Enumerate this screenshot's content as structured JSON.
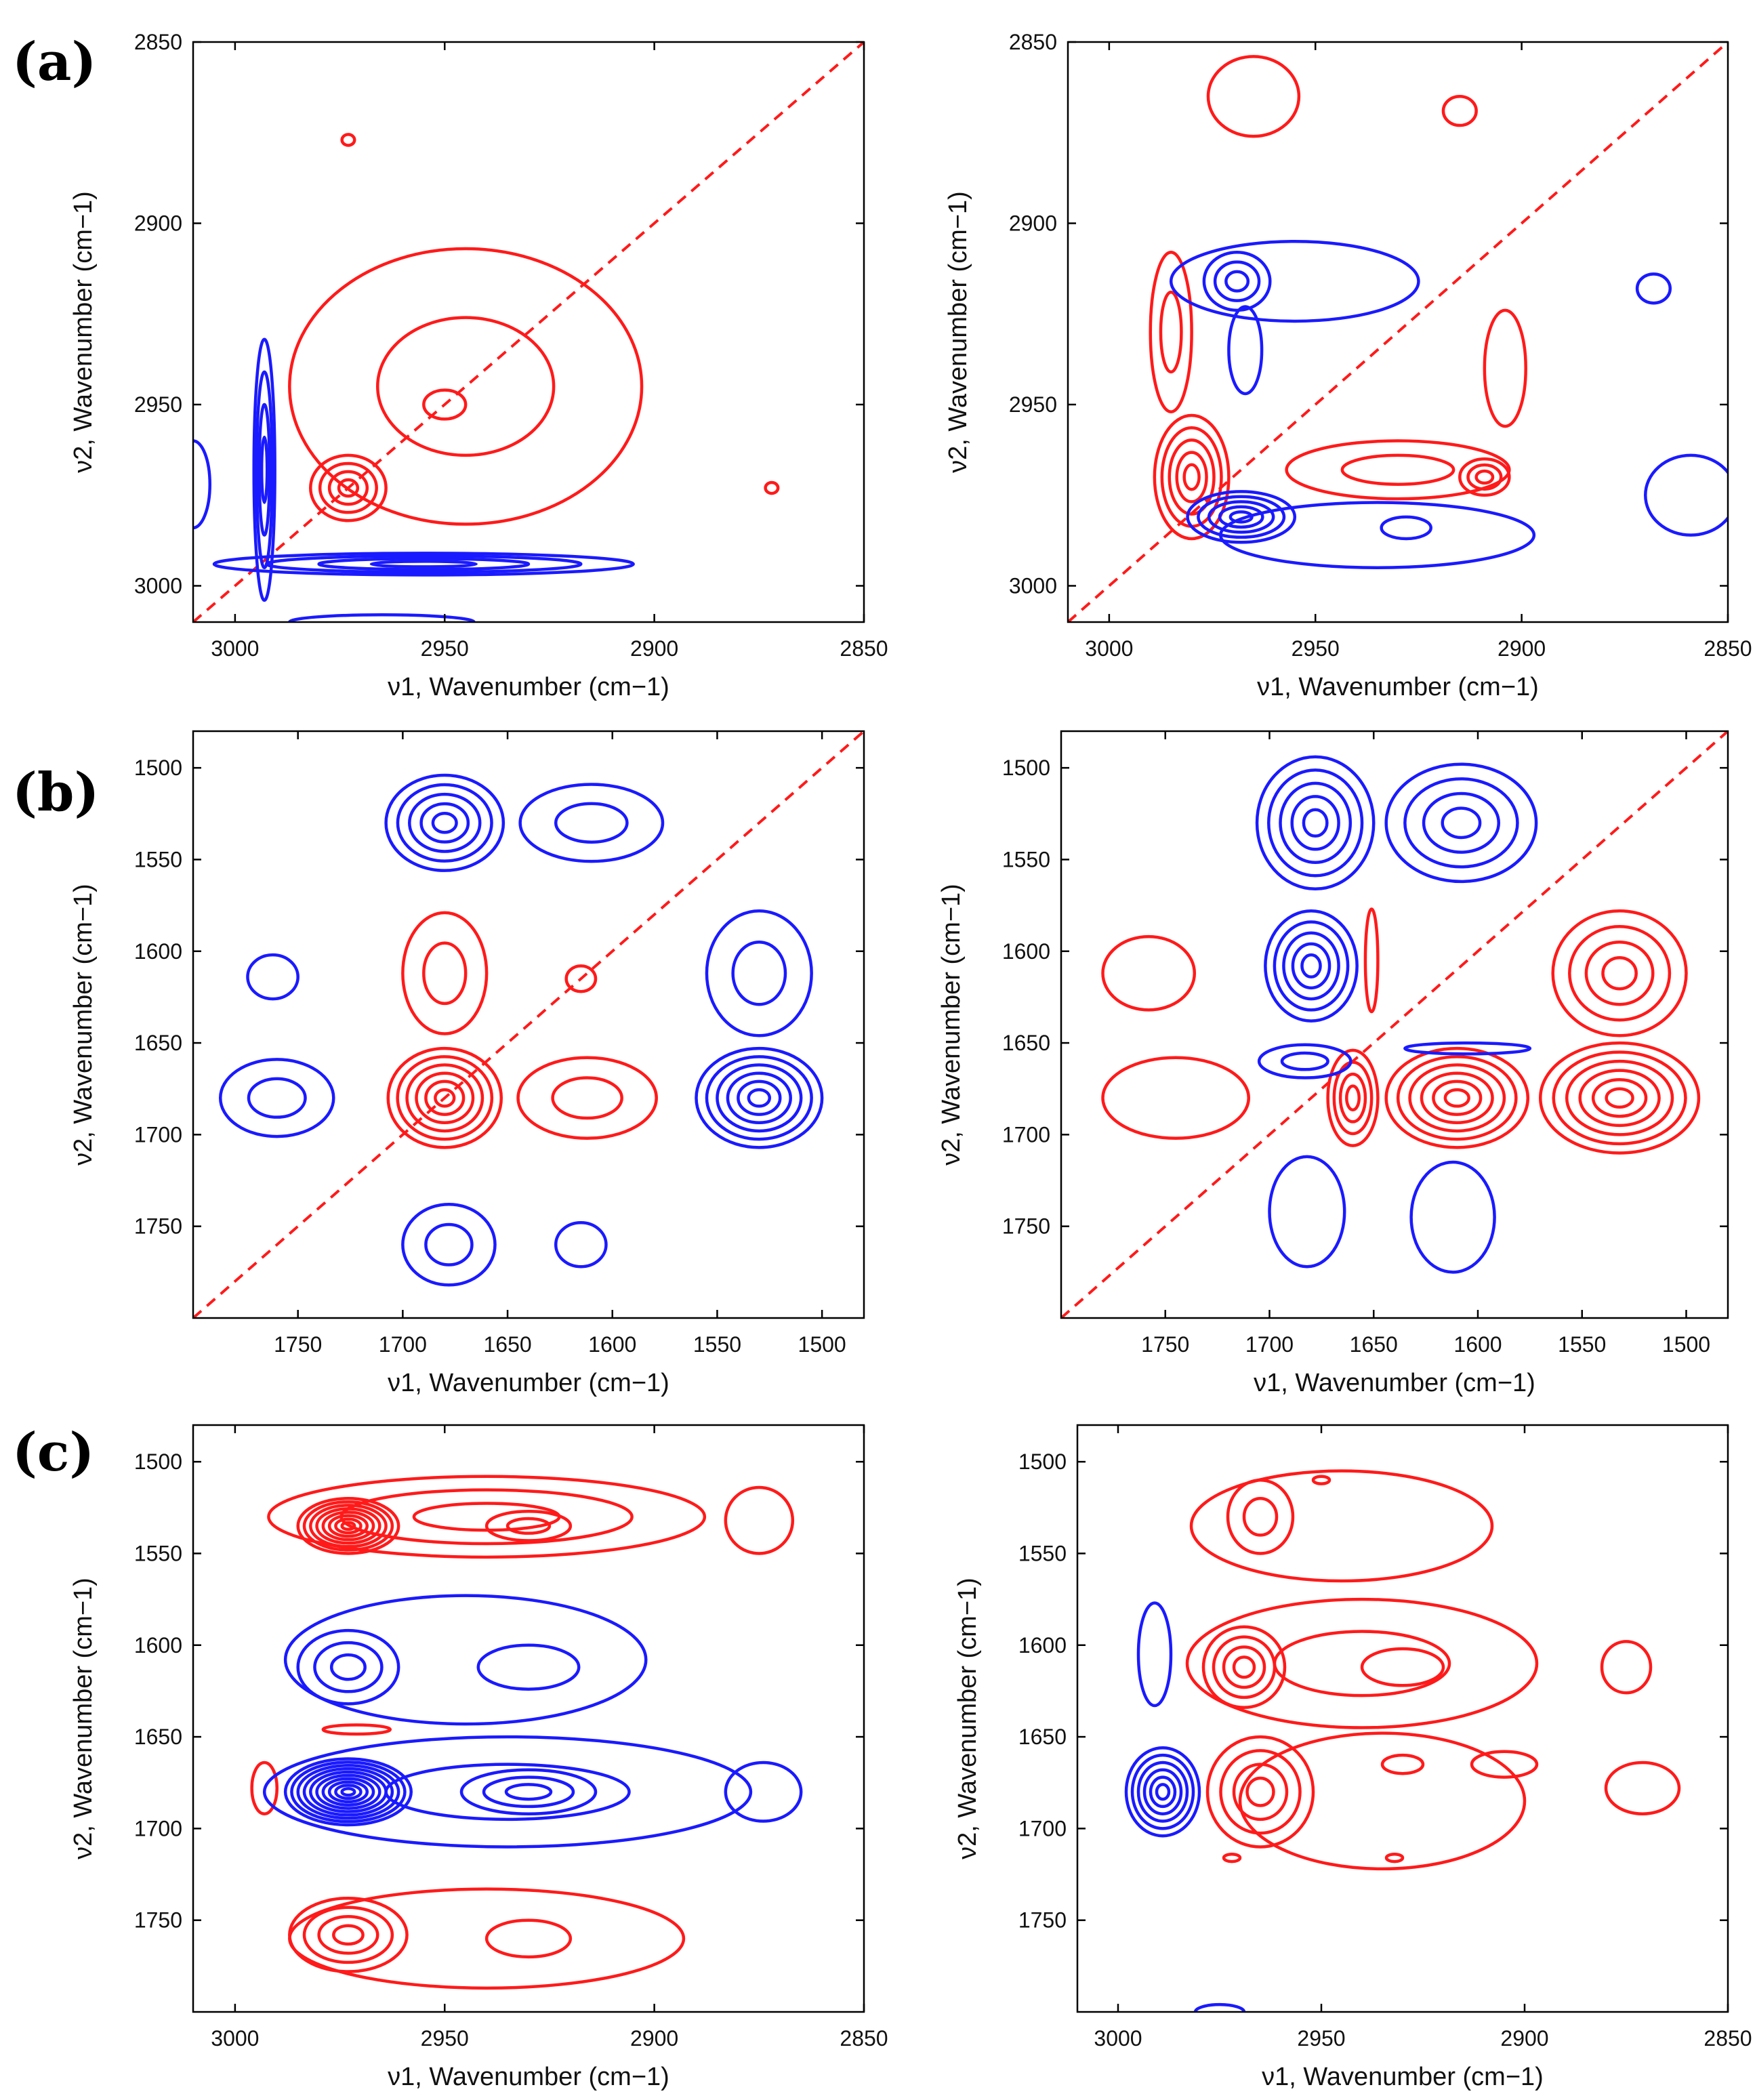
{
  "figure": {
    "panel_labels": [
      "(a)",
      "(b)",
      "(c)"
    ],
    "colors": {
      "positive": "#ff1a1a",
      "negative": "#1a1aff",
      "diagonal": "#ff1a1a",
      "frame": "#000000"
    }
  },
  "chart_data": [
    {
      "id": "a-left",
      "type": "contour",
      "panel": "(a)",
      "title": "",
      "xlabel": "ν1, Wavenumber (cm−1)",
      "ylabel": "ν2, Wavenumber (cm−1)",
      "xlim": [
        3010,
        2850
      ],
      "ylim": [
        2850,
        3010
      ],
      "xticks": [
        3000,
        2950,
        2900,
        2850
      ],
      "yticks": [
        2850,
        2900,
        2950,
        3000
      ],
      "diagonal": true,
      "peaks": [
        {
          "sign": "pos",
          "x": 2973,
          "y": 2973,
          "rx": 9,
          "ry": 9,
          "levels": 4
        },
        {
          "sign": "pos",
          "x": 2950,
          "y": 2950,
          "rx": 5,
          "ry": 4,
          "levels": 1
        },
        {
          "sign": "pos",
          "x": 2945,
          "y": 2945,
          "rx": 42,
          "ry": 38,
          "levels": 2
        },
        {
          "sign": "pos",
          "x": 2973,
          "y": 2877,
          "rx": 1.5,
          "ry": 1.5,
          "levels": 1
        },
        {
          "sign": "pos",
          "x": 2872,
          "y": 2973,
          "rx": 1.5,
          "ry": 1.5,
          "levels": 1
        },
        {
          "sign": "neg",
          "x": 2993,
          "y": 2968,
          "rx": 2.5,
          "ry": 36,
          "levels": 4
        },
        {
          "sign": "neg",
          "x": 2955,
          "y": 2994,
          "rx": 50,
          "ry": 3,
          "levels": 4
        },
        {
          "sign": "neg",
          "x": 3010,
          "y": 2972,
          "rx": 4,
          "ry": 12,
          "levels": 1
        },
        {
          "sign": "neg",
          "x": 2965,
          "y": 3010,
          "rx": 22,
          "ry": 2,
          "levels": 1
        }
      ]
    },
    {
      "id": "a-right",
      "type": "contour",
      "panel": "(a)",
      "title": "",
      "xlabel": "ν1, Wavenumber (cm−1)",
      "ylabel": "ν2, Wavenumber (cm−1)",
      "xlim": [
        3010,
        2850
      ],
      "ylim": [
        2850,
        3010
      ],
      "xticks": [
        3000,
        2950,
        2900,
        2850
      ],
      "yticks": [
        2850,
        2900,
        2950,
        3000
      ],
      "diagonal": true,
      "peaks": [
        {
          "sign": "pos",
          "x": 2980,
          "y": 2970,
          "rx": 9,
          "ry": 17,
          "levels": 5
        },
        {
          "sign": "pos",
          "x": 2985,
          "y": 2930,
          "rx": 5,
          "ry": 22,
          "levels": 2
        },
        {
          "sign": "pos",
          "x": 2909,
          "y": 2970,
          "rx": 6,
          "ry": 5,
          "levels": 3
        },
        {
          "sign": "pos",
          "x": 2930,
          "y": 2968,
          "rx": 27,
          "ry": 8,
          "levels": 2
        },
        {
          "sign": "pos",
          "x": 2904,
          "y": 2940,
          "rx": 5,
          "ry": 16,
          "levels": 1
        },
        {
          "sign": "pos",
          "x": 2965,
          "y": 2865,
          "rx": 11,
          "ry": 11,
          "levels": 1
        },
        {
          "sign": "pos",
          "x": 2915,
          "y": 2869,
          "rx": 4,
          "ry": 4,
          "levels": 1
        },
        {
          "sign": "neg",
          "x": 2968,
          "y": 2981,
          "rx": 13,
          "ry": 7,
          "levels": 5
        },
        {
          "sign": "neg",
          "x": 2935,
          "y": 2986,
          "rx": 38,
          "ry": 9,
          "levels": 1
        },
        {
          "sign": "neg",
          "x": 2928,
          "y": 2984,
          "rx": 6,
          "ry": 3,
          "levels": 1
        },
        {
          "sign": "neg",
          "x": 2969,
          "y": 2916,
          "rx": 8,
          "ry": 8,
          "levels": 3
        },
        {
          "sign": "neg",
          "x": 2955,
          "y": 2916,
          "rx": 30,
          "ry": 11,
          "levels": 1
        },
        {
          "sign": "neg",
          "x": 2967,
          "y": 2935,
          "rx": 4,
          "ry": 12,
          "levels": 1
        },
        {
          "sign": "neg",
          "x": 2868,
          "y": 2918,
          "rx": 4,
          "ry": 4,
          "levels": 1
        },
        {
          "sign": "neg",
          "x": 2859,
          "y": 2975,
          "rx": 11,
          "ry": 11,
          "levels": 1
        }
      ]
    },
    {
      "id": "b-left",
      "type": "contour",
      "panel": "(b)",
      "title": "",
      "xlabel": "ν1, Wavenumber (cm−1)",
      "ylabel": "ν2, Wavenumber (cm−1)",
      "xlim": [
        1800,
        1480
      ],
      "ylim": [
        1480,
        1800
      ],
      "xticks": [
        1750,
        1700,
        1650,
        1600,
        1550,
        1500
      ],
      "yticks": [
        1500,
        1550,
        1600,
        1650,
        1700,
        1750
      ],
      "diagonal": true,
      "peaks": [
        {
          "sign": "pos",
          "x": 1680,
          "y": 1680,
          "rx": 27,
          "ry": 27,
          "levels": 6
        },
        {
          "sign": "pos",
          "x": 1680,
          "y": 1612,
          "rx": 20,
          "ry": 33,
          "levels": 2
        },
        {
          "sign": "pos",
          "x": 1612,
          "y": 1680,
          "rx": 33,
          "ry": 22,
          "levels": 2
        },
        {
          "sign": "pos",
          "x": 1615,
          "y": 1615,
          "rx": 7,
          "ry": 7,
          "levels": 1
        },
        {
          "sign": "neg",
          "x": 1680,
          "y": 1530,
          "rx": 28,
          "ry": 26,
          "levels": 5
        },
        {
          "sign": "neg",
          "x": 1610,
          "y": 1530,
          "rx": 34,
          "ry": 21,
          "levels": 2
        },
        {
          "sign": "neg",
          "x": 1530,
          "y": 1612,
          "rx": 25,
          "ry": 34,
          "levels": 2
        },
        {
          "sign": "neg",
          "x": 1530,
          "y": 1680,
          "rx": 30,
          "ry": 27,
          "levels": 6
        },
        {
          "sign": "neg",
          "x": 1760,
          "y": 1680,
          "rx": 27,
          "ry": 21,
          "levels": 2
        },
        {
          "sign": "neg",
          "x": 1762,
          "y": 1614,
          "rx": 12,
          "ry": 12,
          "levels": 1
        },
        {
          "sign": "neg",
          "x": 1678,
          "y": 1760,
          "rx": 22,
          "ry": 22,
          "levels": 2
        },
        {
          "sign": "neg",
          "x": 1615,
          "y": 1760,
          "rx": 12,
          "ry": 12,
          "levels": 1
        }
      ]
    },
    {
      "id": "b-right",
      "type": "contour",
      "panel": "(b)",
      "title": "",
      "xlabel": "ν1, Wavenumber (cm−1)",
      "ylabel": "ν2, Wavenumber (cm−1)",
      "xlim": [
        1800,
        1480
      ],
      "ylim": [
        1480,
        1800
      ],
      "xticks": [
        1750,
        1700,
        1650,
        1600,
        1550,
        1500
      ],
      "yticks": [
        1500,
        1550,
        1600,
        1650,
        1700,
        1750
      ],
      "diagonal": true,
      "peaks": [
        {
          "sign": "pos",
          "x": 1532,
          "y": 1680,
          "rx": 38,
          "ry": 30,
          "levels": 6
        },
        {
          "sign": "pos",
          "x": 1532,
          "y": 1612,
          "rx": 32,
          "ry": 34,
          "levels": 4
        },
        {
          "sign": "pos",
          "x": 1610,
          "y": 1680,
          "rx": 34,
          "ry": 27,
          "levels": 6
        },
        {
          "sign": "pos",
          "x": 1660,
          "y": 1680,
          "rx": 12,
          "ry": 26,
          "levels": 4
        },
        {
          "sign": "pos",
          "x": 1745,
          "y": 1680,
          "rx": 35,
          "ry": 22,
          "levels": 1
        },
        {
          "sign": "pos",
          "x": 1758,
          "y": 1612,
          "rx": 22,
          "ry": 20,
          "levels": 1
        },
        {
          "sign": "pos",
          "x": 1651,
          "y": 1605,
          "rx": 3,
          "ry": 28,
          "levels": 1
        },
        {
          "sign": "neg",
          "x": 1678,
          "y": 1530,
          "rx": 28,
          "ry": 36,
          "levels": 5
        },
        {
          "sign": "neg",
          "x": 1608,
          "y": 1530,
          "rx": 36,
          "ry": 32,
          "levels": 4
        },
        {
          "sign": "neg",
          "x": 1680,
          "y": 1608,
          "rx": 22,
          "ry": 30,
          "levels": 5
        },
        {
          "sign": "neg",
          "x": 1683,
          "y": 1660,
          "rx": 22,
          "ry": 9,
          "levels": 2
        },
        {
          "sign": "neg",
          "x": 1605,
          "y": 1653,
          "rx": 30,
          "ry": 3,
          "levels": 1
        },
        {
          "sign": "neg",
          "x": 1682,
          "y": 1742,
          "rx": 18,
          "ry": 30,
          "levels": 1
        },
        {
          "sign": "neg",
          "x": 1612,
          "y": 1745,
          "rx": 20,
          "ry": 30,
          "levels": 1
        }
      ]
    },
    {
      "id": "c-left",
      "type": "contour",
      "panel": "(c)",
      "title": "",
      "xlabel": "ν1, Wavenumber (cm−1)",
      "ylabel": "ν2, Wavenumber (cm−1)",
      "xlim": [
        3010,
        2850
      ],
      "ylim": [
        1480,
        1800
      ],
      "xticks": [
        3000,
        2950,
        2900,
        2850
      ],
      "yticks": [
        1500,
        1550,
        1600,
        1650,
        1700,
        1750
      ],
      "diagonal": false,
      "peaks": [
        {
          "sign": "pos",
          "x": 2973,
          "y": 1535,
          "rx": 12,
          "ry": 15,
          "levels": 8
        },
        {
          "sign": "pos",
          "x": 2940,
          "y": 1530,
          "rx": 52,
          "ry": 22,
          "levels": 3
        },
        {
          "sign": "pos",
          "x": 2930,
          "y": 1535,
          "rx": 10,
          "ry": 8,
          "levels": 2
        },
        {
          "sign": "pos",
          "x": 2875,
          "y": 1532,
          "rx": 8,
          "ry": 18,
          "levels": 1
        },
        {
          "sign": "pos",
          "x": 2973,
          "y": 1758,
          "rx": 14,
          "ry": 20,
          "levels": 4
        },
        {
          "sign": "pos",
          "x": 2940,
          "y": 1760,
          "rx": 47,
          "ry": 27,
          "levels": 1
        },
        {
          "sign": "pos",
          "x": 2930,
          "y": 1760,
          "rx": 10,
          "ry": 10,
          "levels": 1
        },
        {
          "sign": "pos",
          "x": 2993,
          "y": 1678,
          "rx": 3,
          "ry": 14,
          "levels": 1
        },
        {
          "sign": "pos",
          "x": 2971,
          "y": 1646,
          "rx": 8,
          "ry": 2.5,
          "levels": 1
        },
        {
          "sign": "neg",
          "x": 2973,
          "y": 1680,
          "rx": 15,
          "ry": 18,
          "levels": 10
        },
        {
          "sign": "neg",
          "x": 2935,
          "y": 1680,
          "rx": 58,
          "ry": 30,
          "levels": 2
        },
        {
          "sign": "neg",
          "x": 2930,
          "y": 1680,
          "rx": 16,
          "ry": 12,
          "levels": 3
        },
        {
          "sign": "neg",
          "x": 2973,
          "y": 1612,
          "rx": 12,
          "ry": 20,
          "levels": 3
        },
        {
          "sign": "neg",
          "x": 2945,
          "y": 1608,
          "rx": 43,
          "ry": 35,
          "levels": 1
        },
        {
          "sign": "neg",
          "x": 2930,
          "y": 1612,
          "rx": 12,
          "ry": 12,
          "levels": 1
        },
        {
          "sign": "neg",
          "x": 2874,
          "y": 1680,
          "rx": 9,
          "ry": 16,
          "levels": 1
        }
      ]
    },
    {
      "id": "c-right",
      "type": "contour",
      "panel": "(c)",
      "title": "",
      "xlabel": "ν1, Wavenumber (cm−1)",
      "ylabel": "ν2, Wavenumber (cm−1)",
      "xlim": [
        3010,
        2850
      ],
      "ylim": [
        1480,
        1800
      ],
      "xticks": [
        3000,
        2950,
        2900,
        2850
      ],
      "yticks": [
        1500,
        1550,
        1600,
        1650,
        1700,
        1750
      ],
      "diagonal": false,
      "peaks": [
        {
          "sign": "pos",
          "x": 2969,
          "y": 1612,
          "rx": 10,
          "ry": 22,
          "levels": 4
        },
        {
          "sign": "pos",
          "x": 2940,
          "y": 1610,
          "rx": 43,
          "ry": 35,
          "levels": 2
        },
        {
          "sign": "pos",
          "x": 2930,
          "y": 1612,
          "rx": 10,
          "ry": 10,
          "levels": 1
        },
        {
          "sign": "pos",
          "x": 2945,
          "y": 1535,
          "rx": 37,
          "ry": 30,
          "levels": 1
        },
        {
          "sign": "pos",
          "x": 2965,
          "y": 1530,
          "rx": 8,
          "ry": 20,
          "levels": 2
        },
        {
          "sign": "pos",
          "x": 2950,
          "y": 1510,
          "rx": 2,
          "ry": 2,
          "levels": 1
        },
        {
          "sign": "pos",
          "x": 2965,
          "y": 1680,
          "rx": 13,
          "ry": 30,
          "levels": 4
        },
        {
          "sign": "pos",
          "x": 2935,
          "y": 1685,
          "rx": 35,
          "ry": 37,
          "levels": 1
        },
        {
          "sign": "pos",
          "x": 2930,
          "y": 1665,
          "rx": 5,
          "ry": 5,
          "levels": 1
        },
        {
          "sign": "pos",
          "x": 2905,
          "y": 1665,
          "rx": 8,
          "ry": 7,
          "levels": 1
        },
        {
          "sign": "pos",
          "x": 2972,
          "y": 1716,
          "rx": 2,
          "ry": 2,
          "levels": 1
        },
        {
          "sign": "pos",
          "x": 2932,
          "y": 1716,
          "rx": 2,
          "ry": 2,
          "levels": 1
        },
        {
          "sign": "pos",
          "x": 2875,
          "y": 1612,
          "rx": 6,
          "ry": 14,
          "levels": 1
        },
        {
          "sign": "pos",
          "x": 2871,
          "y": 1678,
          "rx": 9,
          "ry": 14,
          "levels": 1
        },
        {
          "sign": "neg",
          "x": 2989,
          "y": 1680,
          "rx": 9,
          "ry": 24,
          "levels": 6
        },
        {
          "sign": "neg",
          "x": 2991,
          "y": 1605,
          "rx": 4,
          "ry": 28,
          "levels": 1
        },
        {
          "sign": "neg",
          "x": 2975,
          "y": 1800,
          "rx": 6,
          "ry": 4,
          "levels": 1
        }
      ]
    }
  ]
}
